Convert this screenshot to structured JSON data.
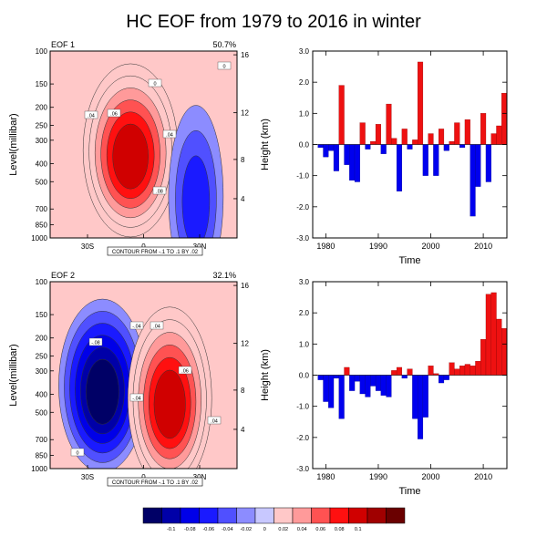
{
  "title": "HC EOF from 1979 to 2016 in winter",
  "colorbar": {
    "labels": [
      "-0.1",
      "-0.08",
      "-0.06",
      "-0.04",
      "-0.02",
      "0",
      "0.02",
      "0.04",
      "0.06",
      "0.08",
      "0.1"
    ],
    "colors": [
      "#000066",
      "#0000a8",
      "#0000e8",
      "#1a1aff",
      "#5050ff",
      "#8c8cff",
      "#c8c8ff",
      "#ffc8c8",
      "#ff9a9a",
      "#ff5252",
      "#ff1010",
      "#d00000",
      "#a00000",
      "#6a0000"
    ]
  },
  "chart_data": [
    {
      "type": "heatmap",
      "label": "EOF 1",
      "variance": "50.7%",
      "ylabel": "Level(millibar)",
      "y2label": "Height (km)",
      "y_ticks": [
        "100",
        "150",
        "200",
        "250",
        "300",
        "400",
        "500",
        "700",
        "850",
        "1000"
      ],
      "y2_ticks": [
        "16",
        "12",
        "8",
        "4"
      ],
      "x_ticks": [
        "30S",
        "0",
        "30N"
      ],
      "footer": "CONTOUR FROM -.1 TO .1 BY .02",
      "contour_labels": [
        "0",
        "0",
        ".04",
        ".06",
        ".04",
        ".08"
      ],
      "pattern": [
        {
          "center_lat": -7,
          "center_lev": 340,
          "amplitude": 0.105,
          "sign": "positive"
        },
        {
          "center_lat": 28,
          "center_lev": 600,
          "amplitude": -0.03,
          "sign": "negative"
        }
      ]
    },
    {
      "type": "heatmap",
      "label": "EOF 2",
      "variance": "32.1%",
      "ylabel": "Level(millibar)",
      "y2label": "Height (km)",
      "y_ticks": [
        "100",
        "150",
        "200",
        "250",
        "300",
        "400",
        "500",
        "700",
        "850",
        "1000"
      ],
      "y2_ticks": [
        "16",
        "12",
        "8",
        "4"
      ],
      "x_ticks": [
        "30S",
        "0",
        "30N"
      ],
      "footer": "CONTOUR FROM -.1 TO .1 BY .02",
      "contour_labels": [
        "-.04",
        "-.08",
        "-.04",
        "0",
        ".04",
        ".06",
        ".04"
      ],
      "pattern": [
        {
          "center_lat": -22,
          "center_lev": 360,
          "amplitude": -0.09,
          "sign": "negative"
        },
        {
          "center_lat": 14,
          "center_lev": 420,
          "amplitude": 0.105,
          "sign": "positive"
        }
      ]
    },
    {
      "type": "bar",
      "label": "PC1",
      "xlabel": "Time",
      "ylim": [
        -3.0,
        3.0
      ],
      "y_ticks": [
        "3.0",
        "2.0",
        "1.0",
        "0.0",
        "-1.0",
        "-2.0",
        "-3.0"
      ],
      "x_ticks": [
        "1980",
        "1990",
        "2000",
        "2010"
      ],
      "x": [
        1979,
        1980,
        1981,
        1982,
        1983,
        1984,
        1985,
        1986,
        1987,
        1988,
        1989,
        1990,
        1991,
        1992,
        1993,
        1994,
        1995,
        1996,
        1997,
        1998,
        1999,
        2000,
        2001,
        2002,
        2003,
        2004,
        2005,
        2006,
        2007,
        2008,
        2009,
        2010,
        2011,
        2012,
        2013,
        2014
      ],
      "values": [
        -0.1,
        -0.4,
        -0.2,
        -0.85,
        1.9,
        -0.65,
        -1.15,
        -1.2,
        0.7,
        -0.15,
        0.1,
        0.65,
        -0.3,
        1.3,
        0.2,
        -1.5,
        0.5,
        -0.15,
        0.15,
        2.65,
        -1.0,
        0.35,
        -1.0,
        0.5,
        -0.2,
        0.1,
        0.7,
        -0.1,
        0.8,
        -2.3,
        -1.35,
        1.0,
        -1.2,
        0.35,
        0.6,
        1.65
      ]
    },
    {
      "type": "bar",
      "label": "PC2",
      "xlabel": "Time",
      "ylim": [
        -3.0,
        3.0
      ],
      "y_ticks": [
        "3.0",
        "2.0",
        "1.0",
        "0.0",
        "-1.0",
        "-2.0",
        "-3.0"
      ],
      "x_ticks": [
        "1980",
        "1990",
        "2000",
        "2010"
      ],
      "x": [
        1979,
        1980,
        1981,
        1982,
        1983,
        1984,
        1985,
        1986,
        1987,
        1988,
        1989,
        1990,
        1991,
        1992,
        1993,
        1994,
        1995,
        1996,
        1997,
        1998,
        1999,
        2000,
        2001,
        2002,
        2003,
        2004,
        2005,
        2006,
        2007,
        2008,
        2009,
        2010,
        2011,
        2012,
        2013,
        2014
      ],
      "values": [
        -0.15,
        -0.85,
        -1.05,
        -0.1,
        -1.4,
        0.25,
        -0.5,
        -0.2,
        -0.6,
        -0.7,
        -0.35,
        -0.5,
        -0.65,
        -0.7,
        0.15,
        0.25,
        -0.1,
        0.2,
        -1.4,
        -2.05,
        -1.35,
        0.3,
        0.05,
        -0.25,
        -0.15,
        0.4,
        0.2,
        0.3,
        0.35,
        0.3,
        0.45,
        1.15,
        2.6,
        2.65,
        1.8,
        1.5
      ]
    }
  ]
}
